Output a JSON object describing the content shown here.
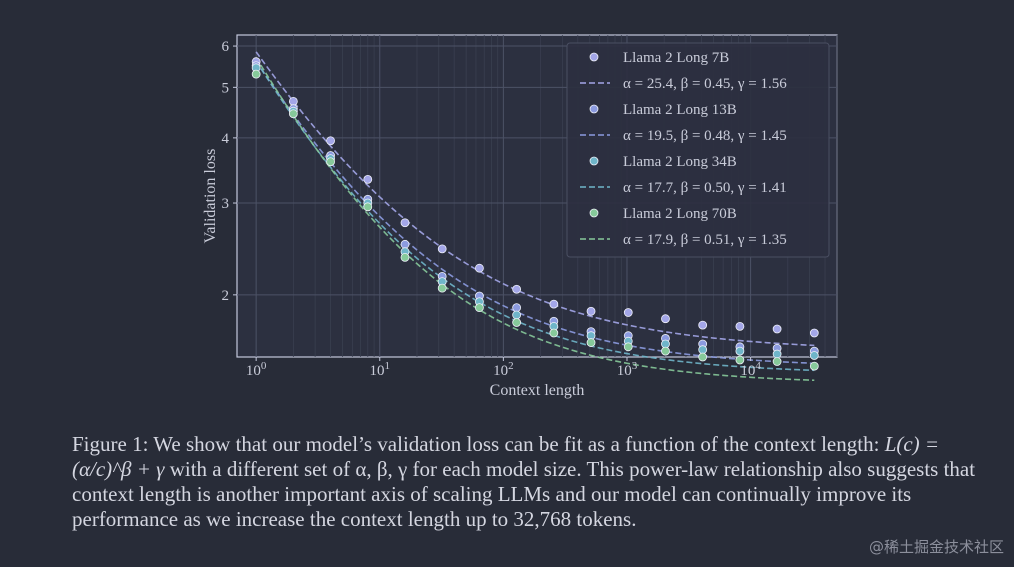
{
  "chart_data": {
    "type": "scatter",
    "xlabel": "Context length",
    "ylabel": "Validation loss",
    "xscale": "log",
    "yscale": "log",
    "xlim": [
      0.7,
      50000
    ],
    "ylim": [
      1.52,
      6.3
    ],
    "x_tick_labels": [
      {
        "base": "10",
        "exp": "0"
      },
      {
        "base": "10",
        "exp": "1"
      },
      {
        "base": "10",
        "exp": "2"
      },
      {
        "base": "10",
        "exp": "3"
      },
      {
        "base": "10",
        "exp": "4"
      }
    ],
    "y_tick_labels": [
      "2",
      "3",
      "4",
      "5",
      "6"
    ],
    "grid": true,
    "legend_position": "top-right",
    "x": [
      1,
      2,
      4,
      8,
      16,
      32,
      64,
      128,
      256,
      512,
      1024,
      2048,
      4096,
      8192,
      16384,
      32768
    ],
    "series": [
      {
        "name": "Llama 2 Long 7B",
        "fit_label": "α = 25.4, β = 0.45, γ = 1.56",
        "alpha": 25.4,
        "beta": 0.45,
        "gamma": 1.56,
        "color": "#a3a6e8",
        "values": [
          5.6,
          4.7,
          3.95,
          3.33,
          2.75,
          2.45,
          2.25,
          2.05,
          1.92,
          1.86,
          1.85,
          1.8,
          1.75,
          1.74,
          1.72,
          1.69
        ]
      },
      {
        "name": "Llama 2 Long  13B",
        "fit_label": "α = 19.5, β = 0.48, γ = 1.45",
        "alpha": 19.5,
        "beta": 0.48,
        "gamma": 1.45,
        "color": "#8c9be0",
        "values": [
          5.5,
          4.55,
          3.7,
          3.05,
          2.5,
          2.17,
          1.99,
          1.89,
          1.78,
          1.7,
          1.67,
          1.65,
          1.61,
          1.59,
          1.58,
          1.56
        ]
      },
      {
        "name": "Llama 2 Long  34B",
        "fit_label": "α = 17.7, β = 0.50, γ = 1.41",
        "alpha": 17.7,
        "beta": 0.5,
        "gamma": 1.41,
        "color": "#6fb5c9",
        "values": [
          5.45,
          4.5,
          3.65,
          3.0,
          2.42,
          2.12,
          1.94,
          1.83,
          1.74,
          1.67,
          1.63,
          1.61,
          1.57,
          1.56,
          1.54,
          1.53
        ]
      },
      {
        "name": "Llama 2 Long  70B",
        "fit_label": "α = 17.9, β = 0.51, γ = 1.35",
        "alpha": 17.9,
        "beta": 0.51,
        "gamma": 1.35,
        "color": "#86c99a",
        "values": [
          5.3,
          4.45,
          3.6,
          2.95,
          2.36,
          2.06,
          1.89,
          1.77,
          1.69,
          1.62,
          1.59,
          1.56,
          1.52,
          1.5,
          1.49,
          1.46
        ]
      }
    ]
  },
  "caption": {
    "text_1": "Figure 1: We show that our model’s validation loss can be fit as a function of the context length: ",
    "formula": "L(c) = (α/c)^β + γ",
    "text_2": " with a different set of α, β, γ for each model size. This power-law relationship also suggests that context length is another important axis of scaling LLMs and our model can continually improve its performance as we increase the context length up to 32,768 tokens."
  },
  "watermark": "@稀土掘金技术社区"
}
